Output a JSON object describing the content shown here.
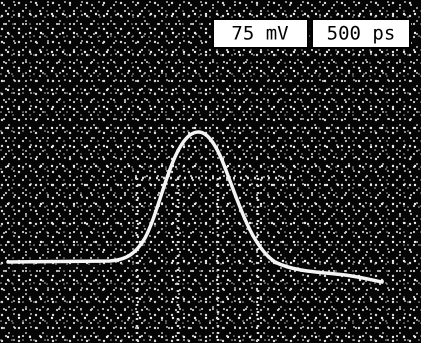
{
  "labels": {
    "volts_per_div": "75 mV",
    "time_per_div": "500 ps"
  }
}
